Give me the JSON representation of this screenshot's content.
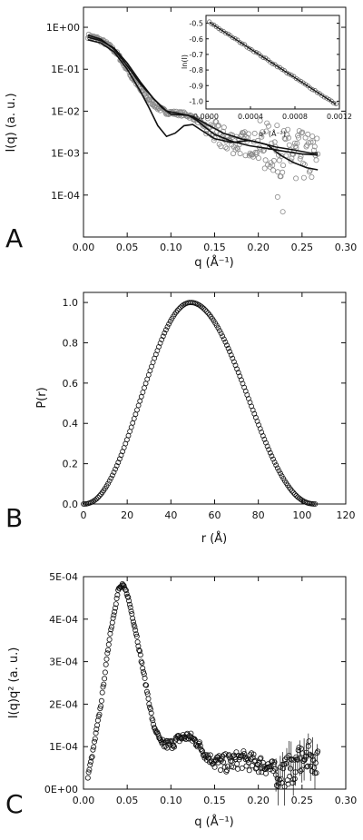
{
  "figure": {
    "panels": [
      {
        "letter": "A"
      },
      {
        "letter": "B"
      },
      {
        "letter": "C"
      }
    ]
  },
  "chart_data": [
    {
      "panel": "A",
      "type": "scatter",
      "ylog": true,
      "xlabel": "q (Å⁻¹)",
      "ylabel": "I(q) (a. u.)",
      "xlim": [
        0,
        0.3
      ],
      "ylim": [
        1e-05,
        3
      ],
      "xticks": [
        "0.00",
        "0.05",
        "0.10",
        "0.15",
        "0.20",
        "0.25",
        "0.30"
      ],
      "yticks": [
        "1E+00",
        "1E-01",
        "1E-02",
        "1E-03",
        "1E-04"
      ],
      "ytick_values": [
        1,
        0.1,
        0.01,
        0.001,
        0.0001
      ],
      "series": [
        {
          "style": "open-circles",
          "x": [
            0.005,
            0.015,
            0.025,
            0.035,
            0.045,
            0.055,
            0.065,
            0.075,
            0.085,
            0.095,
            0.105,
            0.115,
            0.125,
            0.135,
            0.145,
            0.155,
            0.165,
            0.175,
            0.185,
            0.195,
            0.205,
            0.215,
            0.225,
            0.235,
            0.245,
            0.255,
            0.265
          ],
          "y": [
            0.62,
            0.55,
            0.42,
            0.28,
            0.14,
            0.065,
            0.032,
            0.018,
            0.012,
            0.0095,
            0.009,
            0.0085,
            0.0072,
            0.005,
            0.0035,
            0.0025,
            0.002,
            0.0018,
            0.0017,
            0.0016,
            0.0015,
            0.0013,
            0.0011,
            0.001,
            0.0009,
            0.0008,
            0.0008
          ]
        },
        {
          "style": "line",
          "x": [
            0.005,
            0.02,
            0.035,
            0.05,
            0.065,
            0.08,
            0.09,
            0.1,
            0.11,
            0.12,
            0.13,
            0.14,
            0.15,
            0.17,
            0.19,
            0.21,
            0.23,
            0.25,
            0.268
          ],
          "y": [
            0.65,
            0.52,
            0.3,
            0.12,
            0.045,
            0.02,
            0.012,
            0.0085,
            0.0082,
            0.008,
            0.006,
            0.004,
            0.0028,
            0.0019,
            0.0015,
            0.0013,
            0.0011,
            0.00095,
            0.0009
          ]
        },
        {
          "style": "line",
          "x": [
            0.005,
            0.02,
            0.035,
            0.05,
            0.065,
            0.075,
            0.085,
            0.095,
            0.105,
            0.115,
            0.125,
            0.135,
            0.15,
            0.17,
            0.19,
            0.21,
            0.225,
            0.24,
            0.255,
            0.268
          ],
          "y": [
            0.5,
            0.42,
            0.26,
            0.1,
            0.03,
            0.012,
            0.0045,
            0.0025,
            0.003,
            0.0045,
            0.0048,
            0.0035,
            0.0022,
            0.0018,
            0.002,
            0.0016,
            0.0009,
            0.0006,
            0.00045,
            0.0004
          ]
        },
        {
          "style": "line",
          "x": [
            0.005,
            0.02,
            0.035,
            0.05,
            0.065,
            0.08,
            0.095,
            0.11,
            0.125,
            0.14,
            0.16,
            0.18,
            0.2,
            0.22,
            0.24,
            0.26,
            0.268
          ],
          "y": [
            0.58,
            0.48,
            0.32,
            0.14,
            0.05,
            0.02,
            0.01,
            0.0088,
            0.0075,
            0.005,
            0.003,
            0.0022,
            0.0018,
            0.0014,
            0.0012,
            0.001,
            0.001
          ]
        }
      ],
      "inset": {
        "type": "scatter",
        "xlabel": "q² (Å⁻²)",
        "ylabel": "ln(I)",
        "xlim": [
          0,
          0.0012
        ],
        "ylim": [
          -1.05,
          -0.45
        ],
        "xticks": [
          "0.0000",
          "0.0004",
          "0.0008",
          "0.0012"
        ],
        "xtick_values": [
          0,
          0.0004,
          0.0008,
          0.0012
        ],
        "yticks": [
          "-0.5",
          "-0.6",
          "-0.7",
          "-0.8",
          "-0.9",
          "-1.0"
        ],
        "ytick_values": [
          -0.5,
          -0.6,
          -0.7,
          -0.8,
          -0.9,
          -1.0
        ],
        "fit": {
          "slope": -462,
          "intercept": -0.48
        },
        "x_range": [
          3e-05,
          0.00117
        ]
      }
    },
    {
      "panel": "B",
      "type": "scatter",
      "xlabel": "r (Å)",
      "ylabel": "P(r)",
      "xlim": [
        0,
        120
      ],
      "ylim": [
        0,
        1.05
      ],
      "xticks": [
        "0",
        "20",
        "40",
        "60",
        "80",
        "100",
        "120"
      ],
      "yticks": [
        "0.0",
        "0.2",
        "0.4",
        "0.6",
        "0.8",
        "1.0"
      ],
      "ytick_values": [
        0,
        0.2,
        0.4,
        0.6,
        0.8,
        1.0
      ],
      "peak": {
        "x": 49,
        "y": 1.0
      },
      "r_range": [
        0,
        106
      ]
    },
    {
      "panel": "C",
      "type": "scatter",
      "xlabel": "q (Å⁻¹)",
      "ylabel": "I(q)q² (a. u.)",
      "xlim": [
        0,
        0.3
      ],
      "ylim": [
        0,
        0.0005
      ],
      "xticks": [
        "0.00",
        "0.05",
        "0.10",
        "0.15",
        "0.20",
        "0.25",
        "0.30"
      ],
      "yticks": [
        "0E+00",
        "1E-04",
        "2E-04",
        "3E-04",
        "4E-04",
        "5E-04"
      ],
      "ytick_values": [
        0,
        0.0001,
        0.0002,
        0.0003,
        0.0004,
        0.0005
      ],
      "x": [
        0.005,
        0.01,
        0.02,
        0.03,
        0.04,
        0.045,
        0.05,
        0.06,
        0.07,
        0.08,
        0.09,
        0.1,
        0.11,
        0.12,
        0.13,
        0.14,
        0.15,
        0.16,
        0.17,
        0.18,
        0.19,
        0.2,
        0.21,
        0.22,
        0.23,
        0.24,
        0.25,
        0.26,
        0.268
      ],
      "y": [
        3e-05,
        8e-05,
        0.0002,
        0.00036,
        0.00047,
        0.00048,
        0.00046,
        0.00037,
        0.00026,
        0.00015,
        0.000105,
        0.000105,
        0.00012,
        0.000125,
        0.00011,
        8e-05,
        6.5e-05,
        6e-05,
        6.5e-05,
        7e-05,
        6.5e-05,
        6e-05,
        5.5e-05,
        4e-05,
        4e-05,
        5e-05,
        7e-05,
        8e-05,
        6e-05
      ]
    }
  ]
}
